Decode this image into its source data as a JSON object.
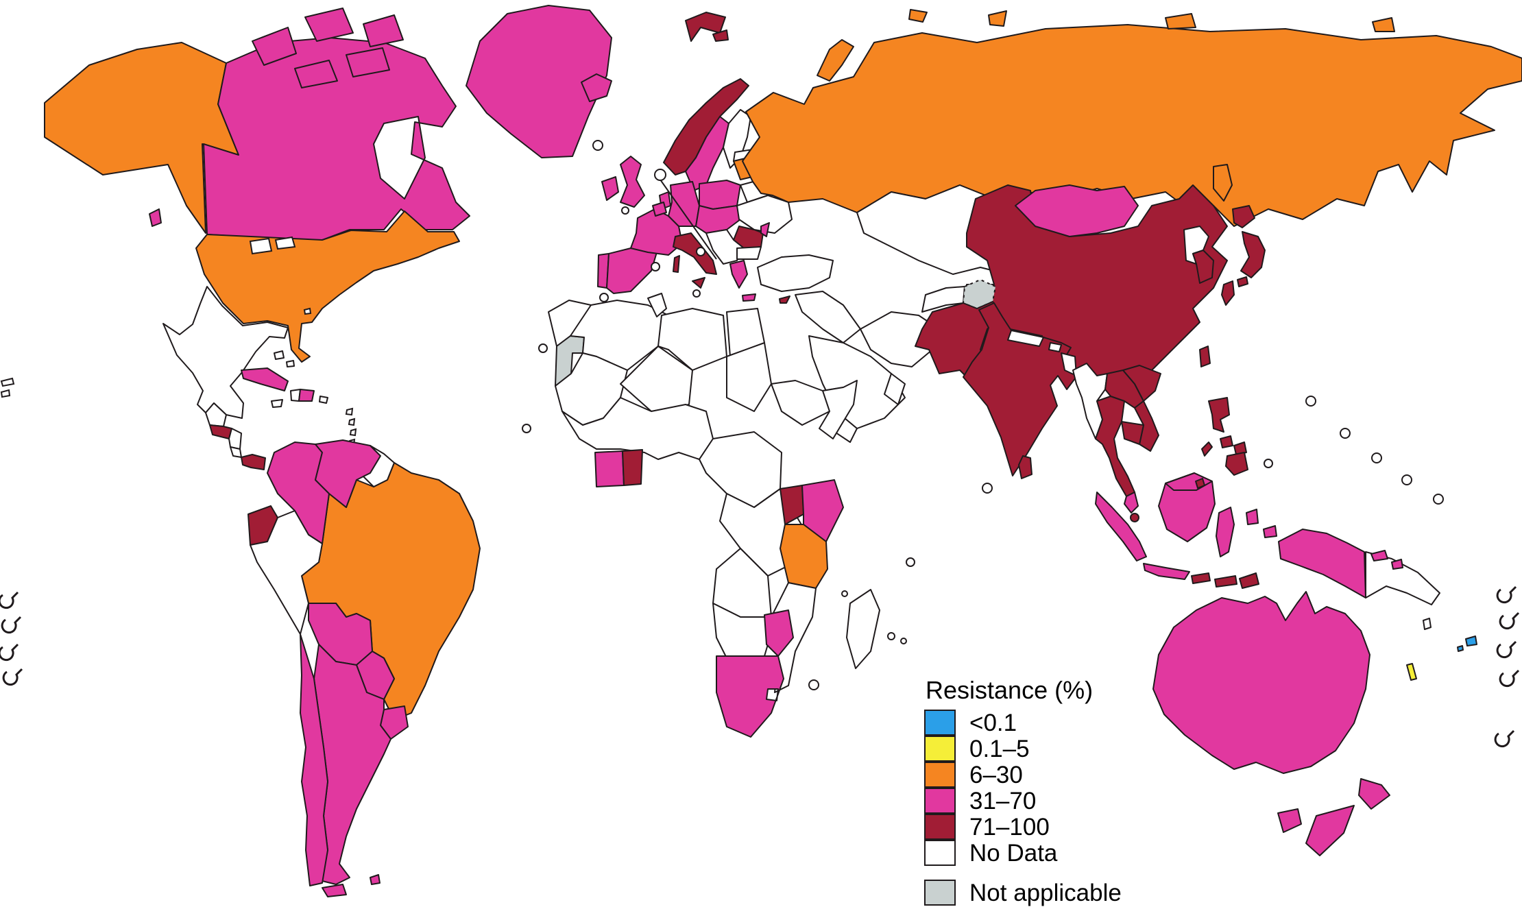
{
  "legend": {
    "title": "Resistance (%)",
    "items": [
      {
        "label": "<0.1",
        "category": "lt01",
        "color": "#2B9FE8",
        "separated": false
      },
      {
        "label": "0.1–5",
        "category": "r01_5",
        "color": "#F5EE38",
        "separated": false
      },
      {
        "label": "6–30",
        "category": "r6_30",
        "color": "#F58521",
        "separated": false
      },
      {
        "label": "31–70",
        "category": "r31_70",
        "color": "#E1389F",
        "separated": false
      },
      {
        "label": "71–100",
        "category": "r71_100",
        "color": "#A11D35",
        "separated": false
      },
      {
        "label": "No Data",
        "category": "nodata",
        "color": "#FFFFFF",
        "separated": false
      },
      {
        "label": "Not applicable",
        "category": "na",
        "color": "#C9D1D0",
        "separated": true
      }
    ]
  },
  "map": {
    "stroke_color": "#1f1a1c",
    "regions": [
      {
        "id": "alaska",
        "name": "Alaska (USA)",
        "category": "r6_30"
      },
      {
        "id": "usa",
        "name": "United States",
        "category": "r6_30"
      },
      {
        "id": "canada",
        "name": "Canada",
        "category": "r31_70"
      },
      {
        "id": "canadian-arctic",
        "name": "Canadian Arctic Islands",
        "category": "r31_70"
      },
      {
        "id": "vancouver-island",
        "name": "Vancouver Island",
        "category": "r31_70"
      },
      {
        "id": "greenland",
        "name": "Greenland",
        "category": "r31_70"
      },
      {
        "id": "mexico",
        "name": "Mexico",
        "category": "nodata"
      },
      {
        "id": "guatemala",
        "name": "Guatemala",
        "category": "nodata"
      },
      {
        "id": "honduras",
        "name": "Honduras / El Salvador",
        "category": "r71_100"
      },
      {
        "id": "nicaragua",
        "name": "Nicaragua",
        "category": "nodata"
      },
      {
        "id": "costa-rica",
        "name": "Costa Rica",
        "category": "nodata"
      },
      {
        "id": "panama",
        "name": "Panama",
        "category": "r71_100"
      },
      {
        "id": "cuba",
        "name": "Cuba",
        "category": "r31_70"
      },
      {
        "id": "jamaica",
        "name": "Jamaica",
        "category": "nodata"
      },
      {
        "id": "haiti",
        "name": "Haiti",
        "category": "nodata"
      },
      {
        "id": "dominican-republic",
        "name": "Dominican Republic",
        "category": "r31_70"
      },
      {
        "id": "puerto-rico",
        "name": "Puerto Rico",
        "category": "nodata"
      },
      {
        "id": "bahamas",
        "name": "Bahamas",
        "category": "nodata"
      },
      {
        "id": "trinidad",
        "name": "Trinidad and Tobago",
        "category": "nodata"
      },
      {
        "id": "colombia",
        "name": "Colombia",
        "category": "r31_70"
      },
      {
        "id": "venezuela",
        "name": "Venezuela",
        "category": "r31_70"
      },
      {
        "id": "guianas",
        "name": "Guyana / Suriname / French Guiana",
        "category": "nodata"
      },
      {
        "id": "ecuador",
        "name": "Ecuador",
        "category": "r71_100"
      },
      {
        "id": "peru",
        "name": "Peru",
        "category": "nodata"
      },
      {
        "id": "brazil",
        "name": "Brazil",
        "category": "r6_30"
      },
      {
        "id": "bolivia",
        "name": "Bolivia",
        "category": "r31_70"
      },
      {
        "id": "paraguay",
        "name": "Paraguay",
        "category": "r31_70"
      },
      {
        "id": "uruguay",
        "name": "Uruguay",
        "category": "r31_70"
      },
      {
        "id": "chile",
        "name": "Chile",
        "category": "r31_70"
      },
      {
        "id": "argentina",
        "name": "Argentina",
        "category": "r31_70"
      },
      {
        "id": "tierra-del-fuego",
        "name": "Tierra del Fuego",
        "category": "r31_70"
      },
      {
        "id": "falklands",
        "name": "Falkland Islands",
        "category": "r31_70"
      },
      {
        "id": "iceland",
        "name": "Iceland",
        "category": "r31_70"
      },
      {
        "id": "svalbard",
        "name": "Svalbard",
        "category": "r71_100"
      },
      {
        "id": "norway",
        "name": "Norway",
        "category": "r71_100"
      },
      {
        "id": "sweden",
        "name": "Sweden",
        "category": "r31_70"
      },
      {
        "id": "finland",
        "name": "Finland",
        "category": "nodata"
      },
      {
        "id": "denmark",
        "name": "Denmark",
        "category": "r31_70"
      },
      {
        "id": "uk",
        "name": "United Kingdom",
        "category": "r31_70"
      },
      {
        "id": "ireland",
        "name": "Ireland",
        "category": "r31_70"
      },
      {
        "id": "portugal",
        "name": "Portugal",
        "category": "r31_70"
      },
      {
        "id": "spain",
        "name": "Spain",
        "category": "r31_70"
      },
      {
        "id": "france",
        "name": "France",
        "category": "r31_70"
      },
      {
        "id": "benelux",
        "name": "Belgium / Netherlands",
        "category": "r31_70"
      },
      {
        "id": "germany",
        "name": "Germany",
        "category": "r31_70"
      },
      {
        "id": "poland",
        "name": "Poland",
        "category": "r31_70"
      },
      {
        "id": "central-europe",
        "name": "Czechia / Austria / Slovakia / Hungary",
        "category": "r31_70"
      },
      {
        "id": "estonia",
        "name": "Estonia",
        "category": "nodata"
      },
      {
        "id": "baltics",
        "name": "Latvia / Lithuania",
        "category": "r6_30"
      },
      {
        "id": "belarus",
        "name": "Belarus",
        "category": "nodata"
      },
      {
        "id": "ukraine",
        "name": "Ukraine",
        "category": "nodata"
      },
      {
        "id": "romania",
        "name": "Romania",
        "category": "r71_100"
      },
      {
        "id": "moldova",
        "name": "Moldova",
        "category": "r31_70"
      },
      {
        "id": "balkans",
        "name": "Western Balkans",
        "category": "nodata"
      },
      {
        "id": "bulgaria",
        "name": "Bulgaria",
        "category": "nodata"
      },
      {
        "id": "greece",
        "name": "Greece",
        "category": "r31_70"
      },
      {
        "id": "crete",
        "name": "Crete",
        "category": "r31_70"
      },
      {
        "id": "italy",
        "name": "Italy",
        "category": "r71_100"
      },
      {
        "id": "sicily",
        "name": "Sicily",
        "category": "r71_100"
      },
      {
        "id": "sardinia",
        "name": "Sardinia",
        "category": "r71_100"
      },
      {
        "id": "cyprus",
        "name": "Cyprus",
        "category": "r71_100"
      },
      {
        "id": "turkey",
        "name": "Turkey",
        "category": "nodata"
      },
      {
        "id": "russia",
        "name": "Russia",
        "category": "r6_30"
      },
      {
        "id": "novaya-zemlya",
        "name": "Novaya Zemlya",
        "category": "r6_30"
      },
      {
        "id": "franz-josef",
        "name": "Franz Josef Land",
        "category": "r6_30"
      },
      {
        "id": "severnaya-zemlya",
        "name": "Severnaya Zemlya",
        "category": "r6_30"
      },
      {
        "id": "new-siberian",
        "name": "New Siberian Islands",
        "category": "r6_30"
      },
      {
        "id": "wrangel",
        "name": "Wrangel Island",
        "category": "r6_30"
      },
      {
        "id": "sakhalin",
        "name": "Sakhalin",
        "category": "r6_30"
      },
      {
        "id": "kazakhstan",
        "name": "Kazakhstan / Central Asia",
        "category": "nodata"
      },
      {
        "id": "syria-iraq",
        "name": "Syria / Iraq",
        "category": "nodata"
      },
      {
        "id": "saudi",
        "name": "Saudi Arabia",
        "category": "nodata"
      },
      {
        "id": "yemen",
        "name": "Yemen",
        "category": "nodata"
      },
      {
        "id": "oman",
        "name": "Oman",
        "category": "nodata"
      },
      {
        "id": "iran",
        "name": "Iran",
        "category": "nodata"
      },
      {
        "id": "afghanistan",
        "name": "Afghanistan",
        "category": "nodata"
      },
      {
        "id": "kashmir",
        "name": "Kashmir (disputed)",
        "category": "na"
      },
      {
        "id": "pakistan",
        "name": "Pakistan",
        "category": "r71_100"
      },
      {
        "id": "india",
        "name": "India",
        "category": "r71_100"
      },
      {
        "id": "nepal",
        "name": "Nepal",
        "category": "nodata"
      },
      {
        "id": "bhutan",
        "name": "Bhutan",
        "category": "nodata"
      },
      {
        "id": "bangladesh",
        "name": "Bangladesh",
        "category": "nodata"
      },
      {
        "id": "sri-lanka",
        "name": "Sri Lanka",
        "category": "r71_100"
      },
      {
        "id": "china",
        "name": "China",
        "category": "r71_100"
      },
      {
        "id": "mongolia",
        "name": "Mongolia",
        "category": "r31_70"
      },
      {
        "id": "north-korea",
        "name": "North Korea",
        "category": "nodata"
      },
      {
        "id": "south-korea",
        "name": "South Korea",
        "category": "r71_100"
      },
      {
        "id": "japan-hokkaido",
        "name": "Japan (Hokkaido)",
        "category": "r71_100"
      },
      {
        "id": "japan-honshu",
        "name": "Japan (Honshu)",
        "category": "r71_100"
      },
      {
        "id": "japan-shikoku",
        "name": "Japan (Shikoku)",
        "category": "r71_100"
      },
      {
        "id": "japan-kyushu",
        "name": "Japan (Kyushu)",
        "category": "r71_100"
      },
      {
        "id": "taiwan",
        "name": "Taiwan",
        "category": "r71_100"
      },
      {
        "id": "myanmar",
        "name": "Myanmar",
        "category": "nodata"
      },
      {
        "id": "thailand",
        "name": "Thailand",
        "category": "r71_100"
      },
      {
        "id": "laos",
        "name": "Laos",
        "category": "r71_100"
      },
      {
        "id": "vietnam",
        "name": "Vietnam",
        "category": "r71_100"
      },
      {
        "id": "cambodia",
        "name": "Cambodia",
        "category": "r71_100"
      },
      {
        "id": "malaysia",
        "name": "Malaysia (peninsula)",
        "category": "r31_70"
      },
      {
        "id": "malaysia-borneo",
        "name": "Malaysia (Borneo)",
        "category": "r31_70"
      },
      {
        "id": "brunei",
        "name": "Brunei",
        "category": "r71_100"
      },
      {
        "id": "singapore",
        "name": "Singapore",
        "category": "r71_100"
      },
      {
        "id": "sumatra",
        "name": "Indonesia (Sumatra)",
        "category": "r31_70"
      },
      {
        "id": "java",
        "name": "Indonesia (Java)",
        "category": "r31_70"
      },
      {
        "id": "kalimantan",
        "name": "Indonesia (Kalimantan)",
        "category": "r31_70"
      },
      {
        "id": "sulawesi",
        "name": "Indonesia (Sulawesi)",
        "category": "r31_70"
      },
      {
        "id": "moluccas",
        "name": "Indonesia (Moluccas)",
        "category": "r31_70"
      },
      {
        "id": "lesser-sunda-1",
        "name": "Lesser Sunda Islands",
        "category": "r71_100"
      },
      {
        "id": "lesser-sunda-2",
        "name": "Lesser Sunda Islands",
        "category": "r71_100"
      },
      {
        "id": "timor",
        "name": "Timor",
        "category": "r71_100"
      },
      {
        "id": "west-papua",
        "name": "Indonesia (Papua)",
        "category": "r31_70"
      },
      {
        "id": "png",
        "name": "Papua New Guinea",
        "category": "nodata"
      },
      {
        "id": "philippines-luzon",
        "name": "Philippines (Luzon)",
        "category": "r71_100"
      },
      {
        "id": "philippines-visayas1",
        "name": "Philippines (Visayas)",
        "category": "r71_100"
      },
      {
        "id": "philippines-visayas2",
        "name": "Philippines (Visayas)",
        "category": "r71_100"
      },
      {
        "id": "philippines-mindanao",
        "name": "Philippines (Mindanao)",
        "category": "r71_100"
      },
      {
        "id": "palawan",
        "name": "Philippines (Palawan)",
        "category": "r71_100"
      },
      {
        "id": "australia",
        "name": "Australia",
        "category": "r31_70"
      },
      {
        "id": "tasmania",
        "name": "Tasmania",
        "category": "r31_70"
      },
      {
        "id": "nz-north",
        "name": "New Zealand (North Island)",
        "category": "r31_70"
      },
      {
        "id": "nz-south",
        "name": "New Zealand (South Island)",
        "category": "r31_70"
      },
      {
        "id": "solomon-1",
        "name": "Solomon Islands",
        "category": "r31_70"
      },
      {
        "id": "solomon-2",
        "name": "Solomon Islands",
        "category": "r31_70"
      },
      {
        "id": "vanuatu",
        "name": "Vanuatu",
        "category": "nodata"
      },
      {
        "id": "fiji",
        "name": "Fiji",
        "category": "lt01"
      },
      {
        "id": "fiji-2",
        "name": "Fiji (small island)",
        "category": "lt01"
      },
      {
        "id": "new-caledonia",
        "name": "New Caledonia",
        "category": "r01_5"
      },
      {
        "id": "morocco",
        "name": "Morocco",
        "category": "nodata"
      },
      {
        "id": "western-sahara",
        "name": "Western Sahara",
        "category": "na"
      },
      {
        "id": "algeria",
        "name": "Algeria",
        "category": "nodata"
      },
      {
        "id": "tunisia",
        "name": "Tunisia",
        "category": "nodata"
      },
      {
        "id": "libya",
        "name": "Libya",
        "category": "nodata"
      },
      {
        "id": "egypt",
        "name": "Egypt",
        "category": "nodata"
      },
      {
        "id": "mauritania-mali",
        "name": "Mauritania / Mali",
        "category": "nodata"
      },
      {
        "id": "niger-chad",
        "name": "Niger / Chad",
        "category": "nodata"
      },
      {
        "id": "sudan",
        "name": "Sudan",
        "category": "nodata"
      },
      {
        "id": "ethiopia",
        "name": "Ethiopia",
        "category": "nodata"
      },
      {
        "id": "somalia",
        "name": "Somalia",
        "category": "nodata"
      },
      {
        "id": "west-africa",
        "name": "West Africa",
        "category": "nodata"
      },
      {
        "id": "cote-divoire",
        "name": "Côte d'Ivoire",
        "category": "r31_70"
      },
      {
        "id": "ghana",
        "name": "Ghana",
        "category": "r71_100"
      },
      {
        "id": "central-africa",
        "name": "Central Africa",
        "category": "nodata"
      },
      {
        "id": "drc",
        "name": "DR Congo",
        "category": "nodata"
      },
      {
        "id": "uganda",
        "name": "Uganda",
        "category": "r71_100"
      },
      {
        "id": "kenya",
        "name": "Kenya",
        "category": "r31_70"
      },
      {
        "id": "tanzania",
        "name": "Tanzania",
        "category": "r6_30"
      },
      {
        "id": "angola-zambia",
        "name": "Angola / Zambia",
        "category": "nodata"
      },
      {
        "id": "mozambique",
        "name": "Mozambique",
        "category": "nodata"
      },
      {
        "id": "namibia-botswana",
        "name": "Namibia / Botswana",
        "category": "nodata"
      },
      {
        "id": "zimbabwe",
        "name": "Zimbabwe",
        "category": "r31_70"
      },
      {
        "id": "south-africa",
        "name": "South Africa",
        "category": "r31_70"
      },
      {
        "id": "madagascar",
        "name": "Madagascar",
        "category": "nodata"
      }
    ]
  }
}
